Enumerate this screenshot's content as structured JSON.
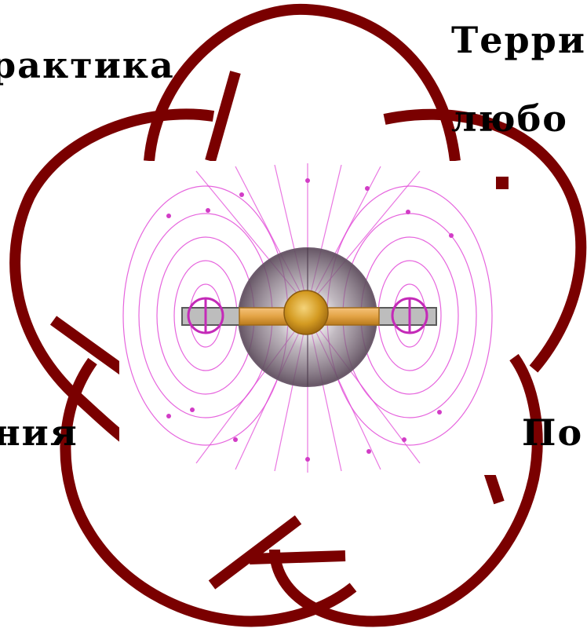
{
  "labels": {
    "top_left": "рактика",
    "top_right_line1": "Терри",
    "top_right_line2": "любо",
    "left": "ния",
    "right": "По"
  },
  "colors": {
    "outline": "#7a0000",
    "field_line": "#e24ad8",
    "earth_core": "#d9a12a",
    "magnet_bar": "#8f8f8f",
    "halo": "#6d5b6d",
    "text": "#000000"
  },
  "icons": [
    "flower-outline",
    "magnetic-field-illustration"
  ]
}
